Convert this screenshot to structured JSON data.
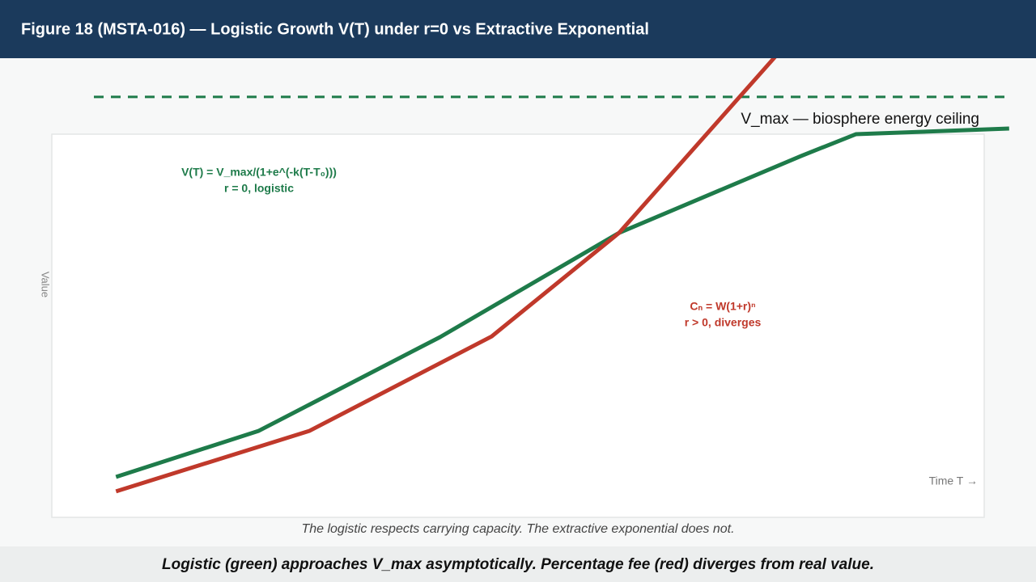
{
  "chart_data": {
    "type": "line",
    "title": "Figure 18 (MSTA-016) — Logistic Growth V(T) under r=0 vs Extractive Exponential",
    "y_label": "Value",
    "x_label": "Time T →",
    "xlim": [
      0,
      100
    ],
    "ylim": [
      0,
      100
    ],
    "series": [
      {
        "name": "Logistic",
        "color": "#1e7b4a",
        "x": [
          6.7,
          21.6,
          40.5,
          59.2,
          78.2,
          83.9,
          99.9
        ],
        "values": [
          10.2,
          22.3,
          46.9,
          74.3,
          94.5,
          100.2,
          101.7
        ]
      },
      {
        "name": "Extractive exponential",
        "color": "#c0392b",
        "x": [
          6.7,
          26.9,
          45.9,
          59.2,
          75.5
        ],
        "values": [
          6.4,
          22.3,
          47.1,
          74.3,
          120.6
        ]
      }
    ],
    "reference_line": {
      "value": 110,
      "label": "V_max — biosphere energy ceiling",
      "color": "#1e7b4a"
    },
    "annotations": [
      {
        "lines": [
          "V(T) = V_max/(1+e^(-k(T-T₀)))",
          "r = 0, logistic"
        ],
        "color": "#1e7b4a"
      },
      {
        "lines": [
          "Cₙ = W(1+r)ⁿ",
          "r > 0, diverges"
        ],
        "color": "#c0392b"
      }
    ],
    "caption": "The logistic respects carrying capacity. The extractive exponential does not.",
    "footer": "Logistic (green) approaches V_max asymptotically. Percentage fee (red) diverges from real value."
  }
}
